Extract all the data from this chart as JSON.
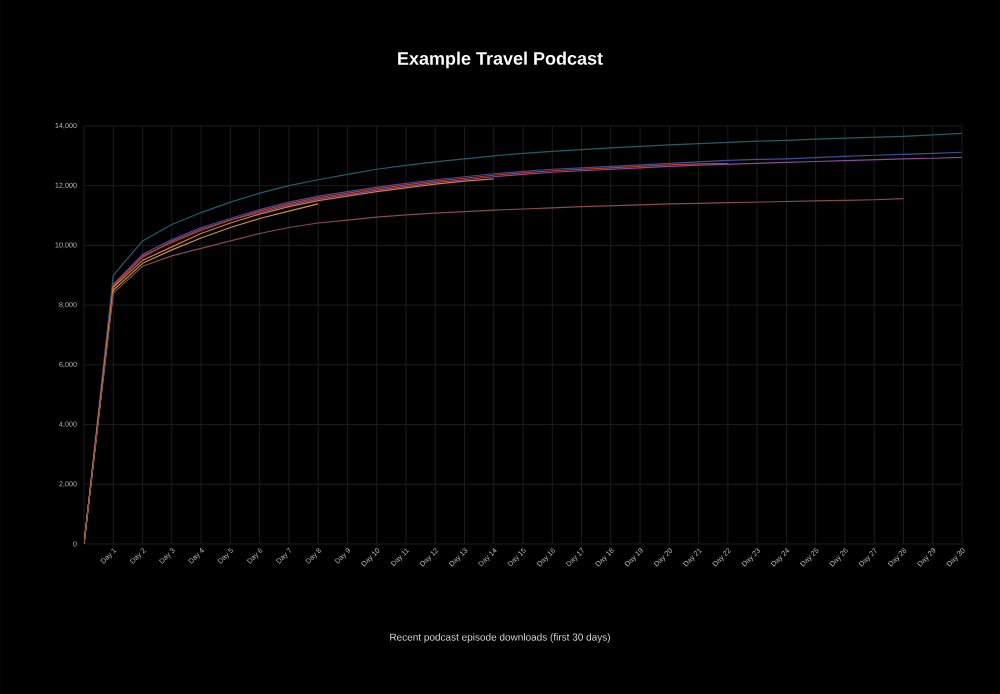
{
  "chart_data": {
    "type": "line",
    "title": "Example Travel Podcast",
    "annotations": [
      "Recent podcast episode downloads (first 30 days)"
    ],
    "categories": [
      null,
      "Day 1",
      "Day 2",
      "Day 3",
      "Day 4",
      "Day 5",
      "Day 6",
      "Day 7",
      "Day 8",
      "Day 9",
      "Day 10",
      "Day 11",
      "Day 12",
      "Day 13",
      "Day 14",
      "Day 15",
      "Day 16",
      "Day 17",
      "Day 18",
      "Day 19",
      "Day 20",
      "Day 21",
      "Day 22",
      "Day 23",
      "Day 24",
      "Day 25",
      "Day 26",
      "Day 27",
      "Day 28",
      "Day 29",
      "Day 30"
    ],
    "series": [
      {
        "color": "#1f5f6b",
        "values": [
          0,
          9000,
          10150,
          10700,
          11100,
          11450,
          11750,
          12000,
          12200,
          12380,
          12550,
          12680,
          12800,
          12900,
          13000,
          13080,
          13150,
          13210,
          13270,
          13320,
          13370,
          13410,
          13450,
          13490,
          13520,
          13560,
          13590,
          13620,
          13650,
          13700,
          13750
        ]
      },
      {
        "color": "#3b4f9a",
        "values": [
          0,
          8700,
          9700,
          10200,
          10600,
          10900,
          11200,
          11450,
          11650,
          11800,
          11950,
          12080,
          12200,
          12300,
          12400,
          12480,
          12550,
          12600,
          12650,
          12700,
          12750,
          12800,
          12850,
          12880,
          12900,
          12940,
          12980,
          13020,
          13050,
          13080,
          13120
        ]
      },
      {
        "color": "#8a4a9a",
        "values": [
          0,
          8650,
          9600,
          10150,
          10550,
          10850,
          11100,
          11350,
          11550,
          11700,
          11850,
          11980,
          12100,
          12200,
          12300,
          12380,
          12450,
          12500,
          12550,
          12600,
          12650,
          12690,
          12720,
          12750,
          12780,
          12810,
          12840,
          12870,
          12900,
          12920,
          12950
        ]
      },
      {
        "color": "#c0392b",
        "values": [
          0,
          8650,
          9650,
          10100,
          10500,
          10850,
          11150,
          11400,
          11600,
          11750,
          11900,
          12030,
          12150,
          12250,
          12350,
          12430,
          12500,
          12550,
          12600,
          12650,
          12700,
          12730,
          12750,
          null,
          null,
          null,
          null,
          null,
          null,
          null,
          null
        ]
      },
      {
        "color": "#d9783a",
        "values": [
          0,
          8600,
          9500,
          9950,
          10400,
          10750,
          11050,
          11300,
          11500,
          11650,
          11800,
          11930,
          12050,
          12150,
          12230,
          null,
          null,
          null,
          null,
          null,
          null,
          null,
          null,
          null,
          null,
          null,
          null,
          null,
          null,
          null,
          null
        ]
      },
      {
        "color": "#c8943a",
        "values": [
          0,
          8500,
          9400,
          9850,
          10250,
          10600,
          10900,
          11150,
          11390,
          null,
          null,
          null,
          null,
          null,
          null,
          null,
          null,
          null,
          null,
          null,
          null,
          null,
          null,
          null,
          null,
          null,
          null,
          null,
          null,
          null,
          null
        ]
      },
      {
        "color": "#8a4a4a",
        "values": [
          0,
          8400,
          9300,
          9650,
          9900,
          10150,
          10400,
          10600,
          10750,
          10850,
          10950,
          11020,
          11080,
          11130,
          11180,
          11220,
          11260,
          11300,
          11330,
          11360,
          11390,
          11410,
          11430,
          11450,
          11470,
          11490,
          11510,
          11530,
          11570,
          null,
          null
        ]
      }
    ],
    "ylim": [
      0,
      14000
    ],
    "yticks": [
      0,
      {
        "value": 2000,
        "label": "2,000"
      },
      {
        "value": 4000,
        "label": "4,000"
      },
      {
        "value": 6000,
        "label": "6,000"
      },
      {
        "value": 8000,
        "label": "8,000"
      },
      {
        "value": 10000,
        "label": "10,000"
      },
      {
        "value": 12000,
        "label": "12,000"
      },
      {
        "value": 14000,
        "label": "14,000"
      }
    ],
    "grid": true
  }
}
